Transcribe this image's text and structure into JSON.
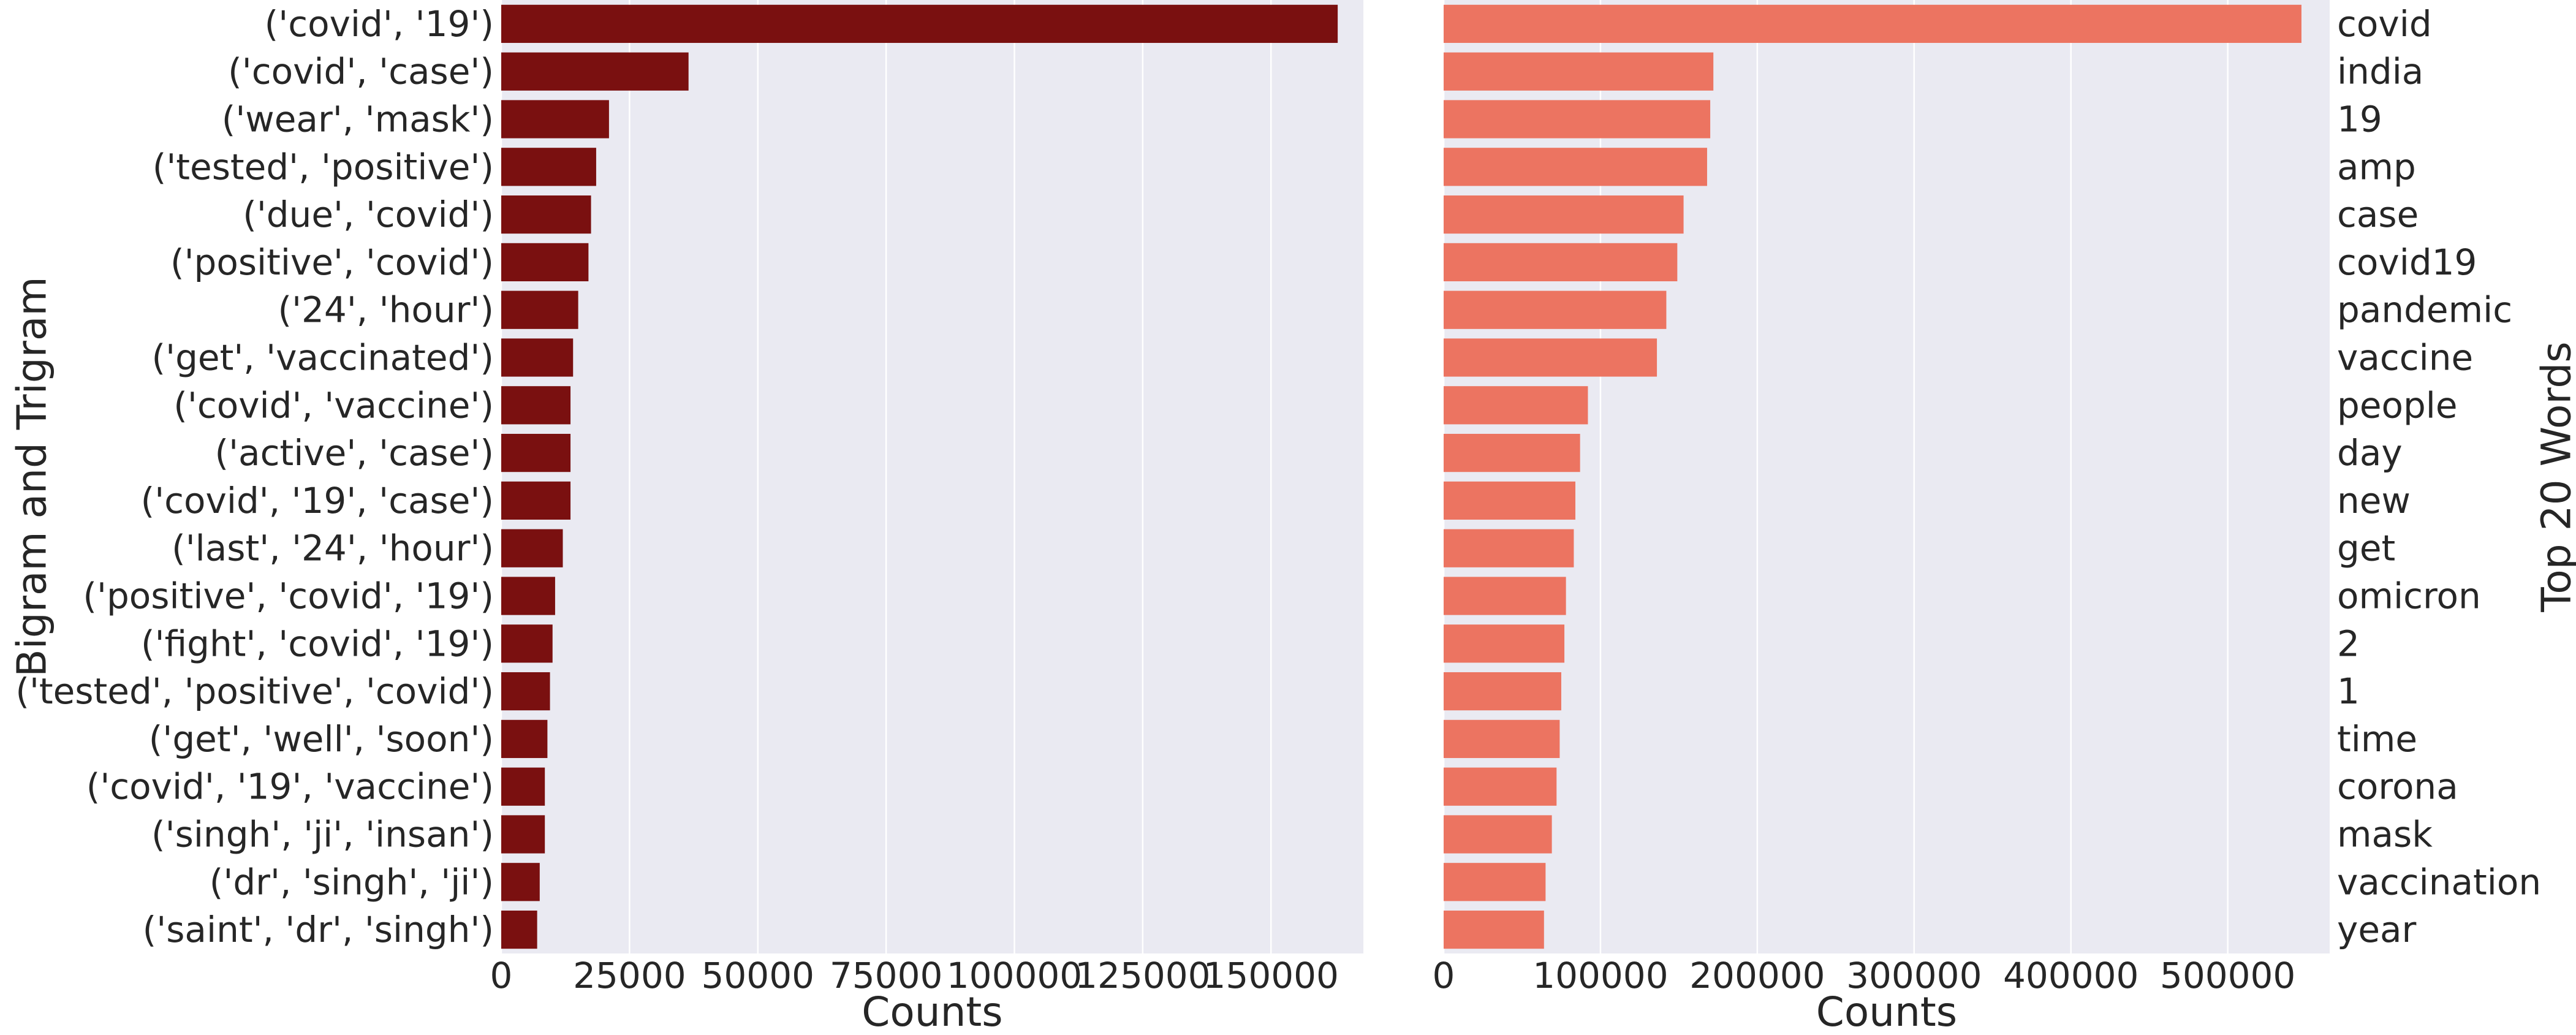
{
  "charts": [
    {
      "type": "bar",
      "orientation": "horizontal",
      "categories": [
        "('covid', '19')",
        "('covid', 'case')",
        "('wear', 'mask')",
        "('tested', 'positive')",
        "('due', 'covid')",
        "('positive', 'covid')",
        "('24', 'hour')",
        "('get', 'vaccinated')",
        "('covid', 'vaccine')",
        "('active', 'case')",
        "('covid', '19', 'case')",
        "('last', '24', 'hour')",
        "('positive', 'covid', '19')",
        "('fight', 'covid', '19')",
        "('tested', 'positive', 'covid')",
        "('get', 'well', 'soon')",
        "('covid', '19', 'vaccine')",
        "('singh', 'ji', 'insan')",
        "('dr', 'singh', 'ji')",
        "('saint', 'dr', 'singh')"
      ],
      "values": [
        163000,
        36500,
        21000,
        18500,
        17500,
        17000,
        15000,
        14000,
        13500,
        13500,
        13500,
        12000,
        10500,
        10000,
        9500,
        9000,
        8500,
        8500,
        7500,
        7000
      ],
      "xlabel": "Counts",
      "ylabel": "Bigram and Trigram",
      "xlim": [
        0,
        168000
      ],
      "xticks": [
        0,
        25000,
        50000,
        75000,
        100000,
        125000,
        150000
      ],
      "ylabel_side": "left",
      "bar_color": "#7a1010",
      "grid": true
    },
    {
      "type": "bar",
      "orientation": "horizontal",
      "categories": [
        "covid",
        "india",
        "19",
        "amp",
        "case",
        "covid19",
        "pandemic",
        "vaccine",
        "people",
        "day",
        "new",
        "get",
        "omicron",
        "2",
        "1",
        "time",
        "corona",
        "mask",
        "vaccination",
        "year"
      ],
      "values": [
        547000,
        172000,
        170000,
        168000,
        153000,
        149000,
        142000,
        136000,
        92000,
        87000,
        84000,
        83000,
        78000,
        77000,
        75000,
        74000,
        72000,
        69000,
        65000,
        64000
      ],
      "xlabel": "Counts",
      "ylabel": "Top 20 Words",
      "xlim": [
        0,
        565000
      ],
      "xticks": [
        0,
        100000,
        200000,
        300000,
        400000,
        500000
      ],
      "ylabel_side": "right",
      "bar_color": "#ec7461",
      "grid": true
    }
  ],
  "plot_background": "#eaeaf2",
  "grid_color": "#ffffff"
}
